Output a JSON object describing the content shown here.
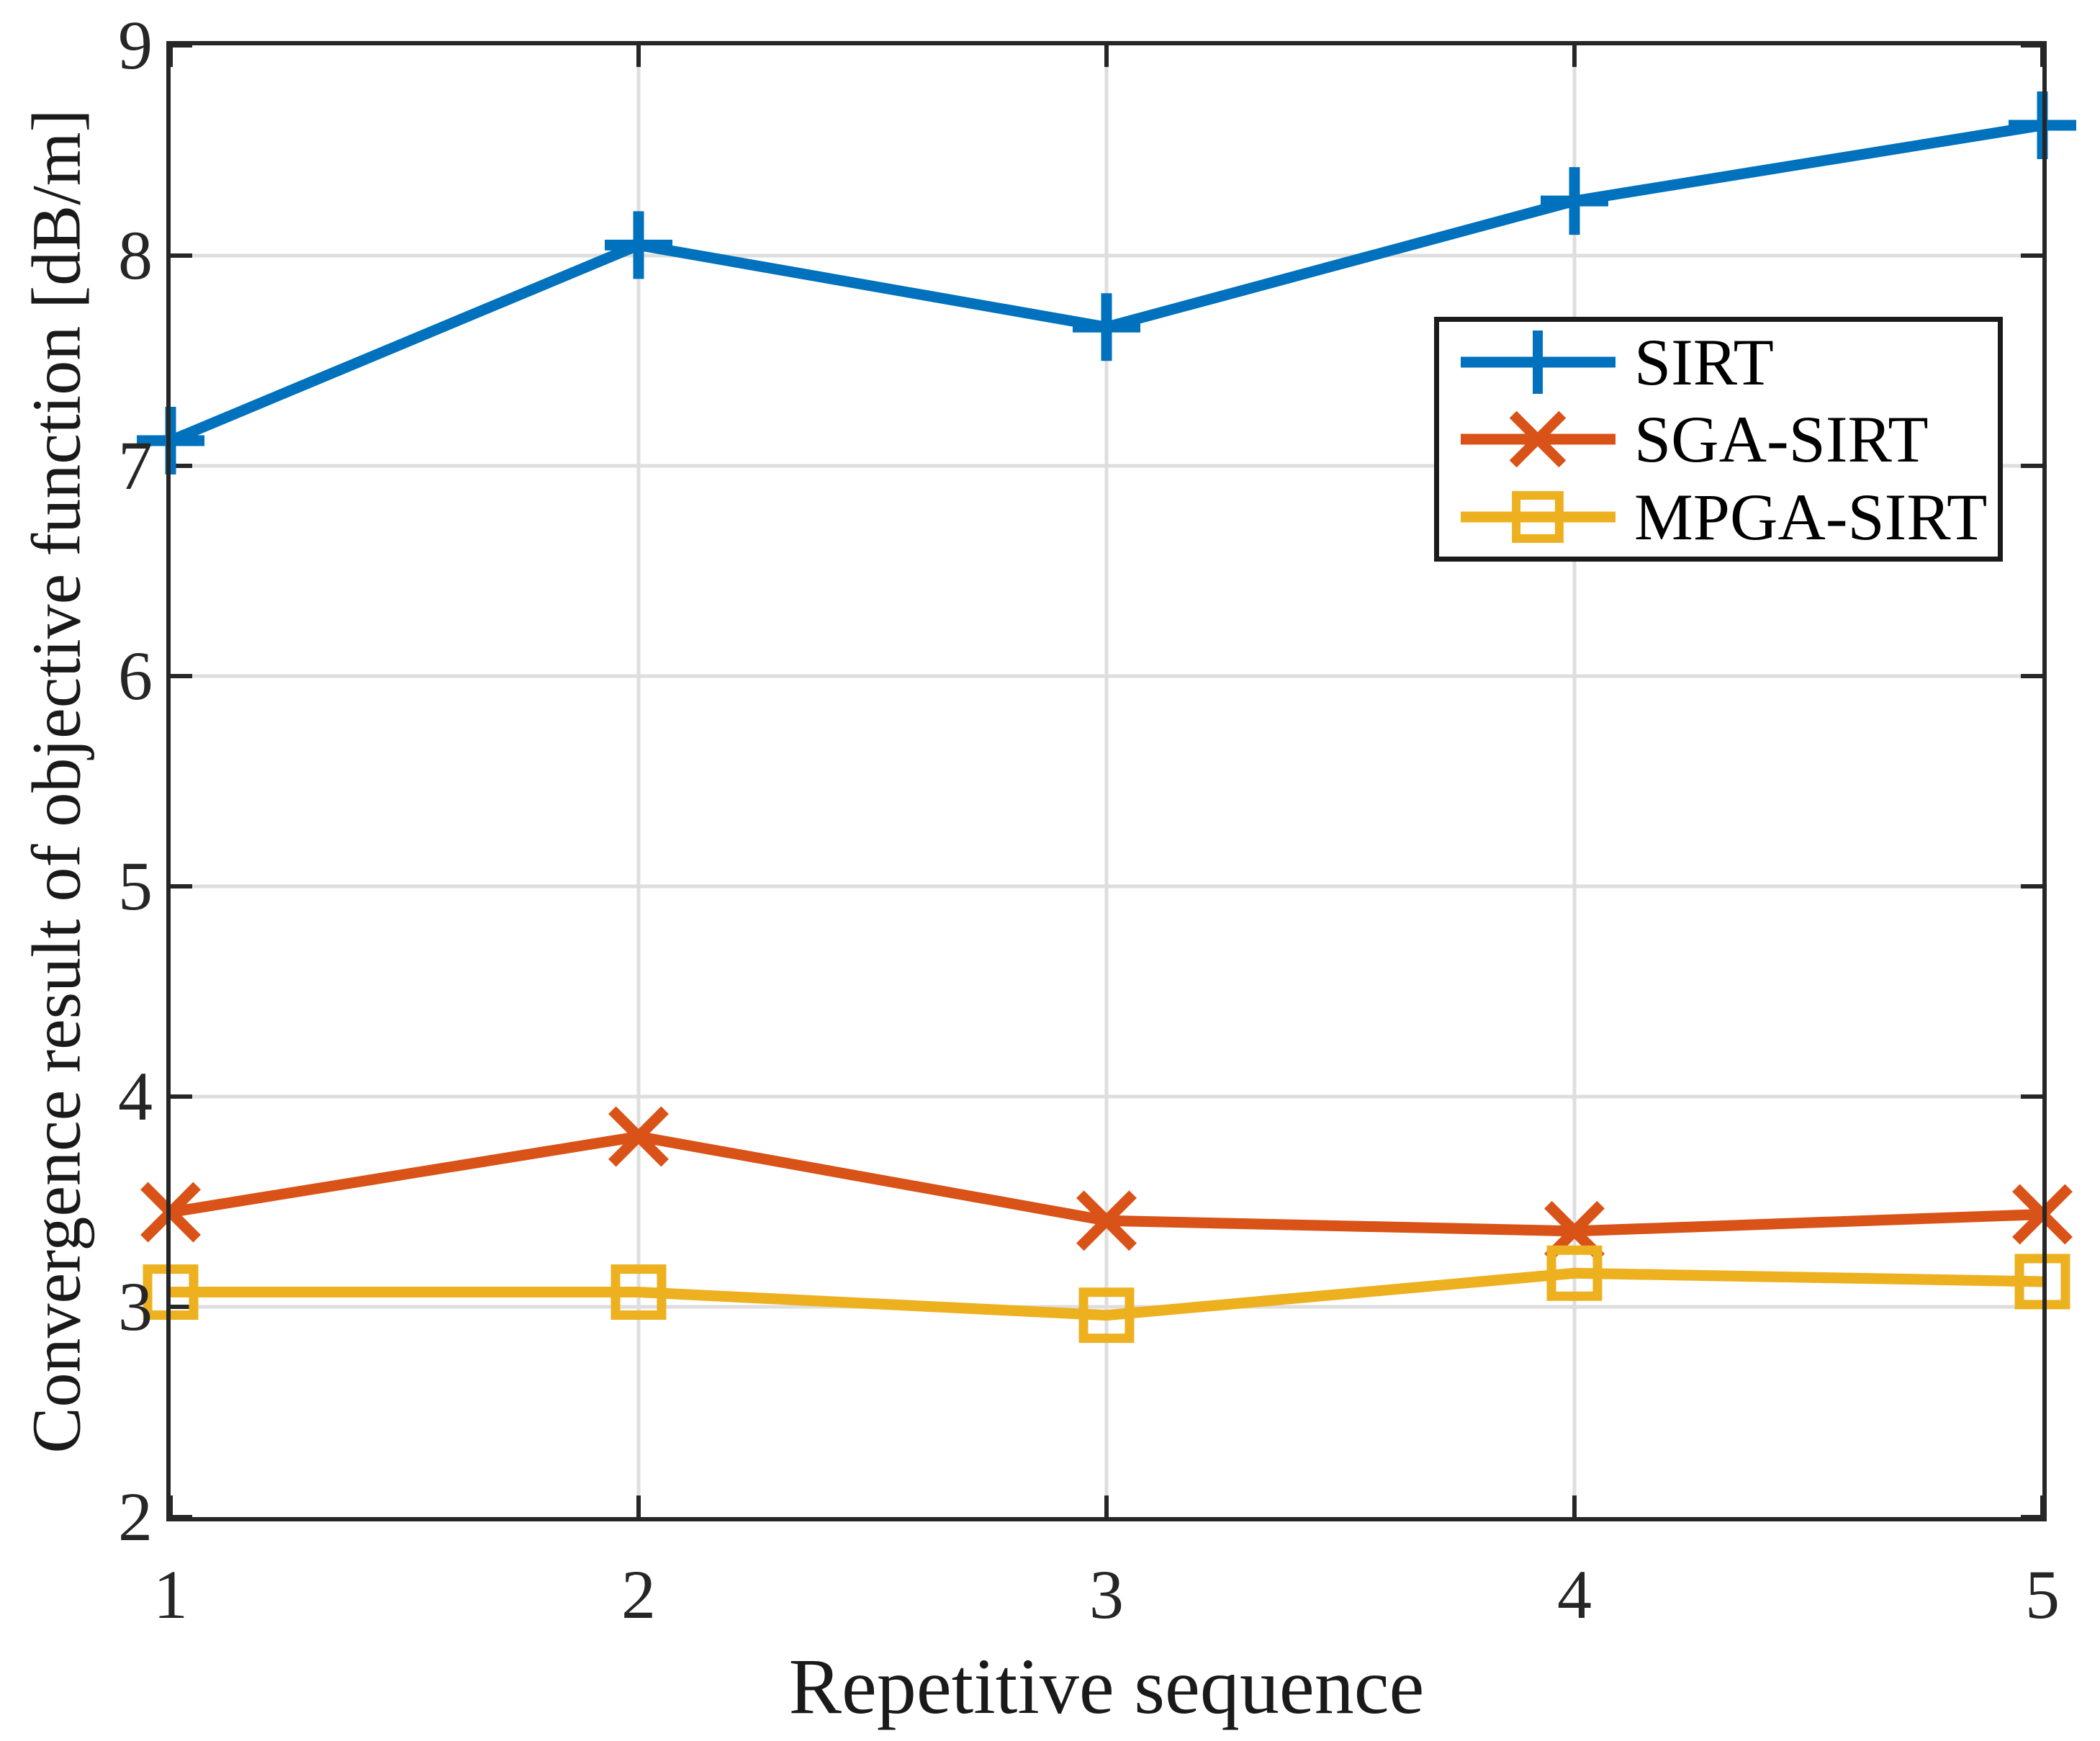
{
  "figure": {
    "background": "#ffffff",
    "axis_color": "#262626",
    "grid_color": "#dedede",
    "tick_length": 30,
    "tick_width": 6,
    "line_width": 15
  },
  "axes": {
    "x_label": "Repetitive sequence",
    "y_label": "Convergence result of objective function [dB/m]",
    "x_ticks": [
      1,
      2,
      3,
      4,
      5
    ],
    "y_ticks": [
      2,
      3,
      4,
      5,
      6,
      7,
      8,
      9
    ]
  },
  "legend": {
    "position": "upper right",
    "entries": [
      {
        "label": "SIRT",
        "color": "#0072BD",
        "marker": "plus"
      },
      {
        "label": "SGA-SIRT",
        "color": "#D95319",
        "marker": "cross"
      },
      {
        "label": "MPGA-SIRT",
        "color": "#EDB120",
        "marker": "square"
      }
    ]
  },
  "chart_data": {
    "type": "line",
    "x": [
      1,
      2,
      3,
      4,
      5
    ],
    "series": [
      {
        "name": "SIRT",
        "color": "#0072BD",
        "marker": "plus",
        "values": [
          7.12,
          8.05,
          7.66,
          8.26,
          8.62
        ]
      },
      {
        "name": "SGA-SIRT",
        "color": "#D95319",
        "marker": "cross",
        "values": [
          3.45,
          3.81,
          3.41,
          3.36,
          3.44
        ]
      },
      {
        "name": "MPGA-SIRT",
        "color": "#EDB120",
        "marker": "square",
        "values": [
          3.07,
          3.07,
          2.96,
          3.16,
          3.12
        ]
      }
    ],
    "title": "",
    "xlabel": "Repetitive sequence",
    "ylabel": "Convergence result of objective function [dB/m]",
    "xlim": [
      1,
      5
    ],
    "ylim": [
      2,
      9
    ],
    "grid": true,
    "legend_position": "upper right"
  }
}
